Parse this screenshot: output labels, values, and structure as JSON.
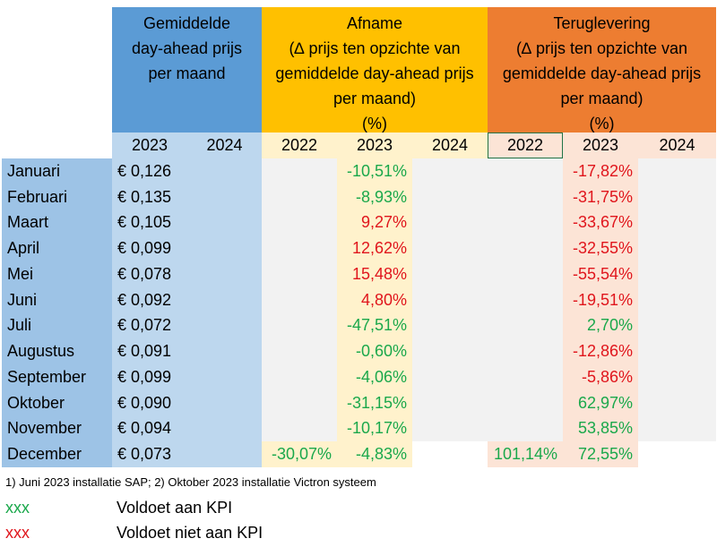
{
  "colors": {
    "blue_header": "#5b9bd5",
    "orange_header": "#ffc000",
    "dark_orange_header": "#ed7d31",
    "light_blue": "#bdd7ee",
    "mid_blue": "#9dc3e6",
    "light_orange": "#fff2cc",
    "light_red": "#fce4d6",
    "grey": "#f2f2f2",
    "green_text": "#1aa84b",
    "red_text": "#e0151c"
  },
  "headers": {
    "price": "Gemiddelde\nday-ahead prijs\nper maand",
    "afname": "Afname\n(∆ prijs ten opzichte van\ngemiddelde day-ahead prijs\nper maand)\n(%)",
    "teruglevering": "Teruglevering\n(∆ prijs ten opzichte van\ngemiddelde day-ahead prijs\nper maand)\n(%)"
  },
  "years": {
    "price_2023": "2023",
    "price_2024": "2024",
    "afname_2022": "2022",
    "afname_2023": "2023",
    "afname_2024": "2024",
    "terug_2022": "2022",
    "terug_2023": "2023",
    "terug_2024": "2024"
  },
  "rows": [
    {
      "month": "Januari",
      "price": "€ 0,126",
      "afname_2022": "",
      "afname_2023": "-10,51%",
      "afname_2023_color": "green",
      "terug_2022": "",
      "terug_2023": "-17,82%",
      "terug_2023_color": "red"
    },
    {
      "month": "Februari",
      "price": "€ 0,135",
      "afname_2022": "",
      "afname_2023": "-8,93%",
      "afname_2023_color": "green",
      "terug_2022": "",
      "terug_2023": "-31,75%",
      "terug_2023_color": "red"
    },
    {
      "month": "Maart",
      "price": "€ 0,105",
      "afname_2022": "",
      "afname_2023": "9,27%",
      "afname_2023_color": "red",
      "terug_2022": "",
      "terug_2023": "-33,67%",
      "terug_2023_color": "red"
    },
    {
      "month": "April",
      "price": "€ 0,099",
      "afname_2022": "",
      "afname_2023": "12,62%",
      "afname_2023_color": "red",
      "terug_2022": "",
      "terug_2023": "-32,55%",
      "terug_2023_color": "red"
    },
    {
      "month": "Mei",
      "price": "€ 0,078",
      "afname_2022": "",
      "afname_2023": "15,48%",
      "afname_2023_color": "red",
      "terug_2022": "",
      "terug_2023": "-55,54%",
      "terug_2023_color": "red"
    },
    {
      "month": "Juni",
      "price": "€ 0,092",
      "afname_2022": "",
      "afname_2023": "4,80%",
      "afname_2023_color": "red",
      "terug_2022": "",
      "terug_2023": "-19,51%",
      "terug_2023_color": "red"
    },
    {
      "month": "Juli",
      "price": "€ 0,072",
      "afname_2022": "",
      "afname_2023": "-47,51%",
      "afname_2023_color": "green",
      "terug_2022": "",
      "terug_2023": "2,70%",
      "terug_2023_color": "green"
    },
    {
      "month": "Augustus",
      "price": "€ 0,091",
      "afname_2022": "",
      "afname_2023": "-0,60%",
      "afname_2023_color": "green",
      "terug_2022": "",
      "terug_2023": "-12,86%",
      "terug_2023_color": "red"
    },
    {
      "month": "September",
      "price": "€ 0,099",
      "afname_2022": "",
      "afname_2023": "-4,06%",
      "afname_2023_color": "green",
      "terug_2022": "",
      "terug_2023": "-5,86%",
      "terug_2023_color": "red"
    },
    {
      "month": "Oktober",
      "price": "€ 0,090",
      "afname_2022": "",
      "afname_2023": "-31,15%",
      "afname_2023_color": "green",
      "terug_2022": "",
      "terug_2023": "62,97%",
      "terug_2023_color": "green"
    },
    {
      "month": "November",
      "price": "€ 0,094",
      "afname_2022": "",
      "afname_2023": "-10,17%",
      "afname_2023_color": "green",
      "terug_2022": "",
      "terug_2023": "53,85%",
      "terug_2023_color": "green"
    },
    {
      "month": "December",
      "price": "€ 0,073",
      "afname_2022": "-30,07%",
      "afname_2022_color": "green",
      "afname_2023": "-4,83%",
      "afname_2023_color": "green",
      "terug_2022": "101,14%",
      "terug_2022_color": "green",
      "terug_2023": "72,55%",
      "terug_2023_color": "green"
    }
  ],
  "footnote": "1) Juni 2023 installatie SAP; 2) Oktober 2023 installatie Victron systeem",
  "legend": [
    {
      "marker": "xxx",
      "marker_color": "green",
      "text": "Voldoet aan KPI"
    },
    {
      "marker": "xxx",
      "marker_color": "red",
      "text": "Voldoet niet aan KPI"
    }
  ]
}
